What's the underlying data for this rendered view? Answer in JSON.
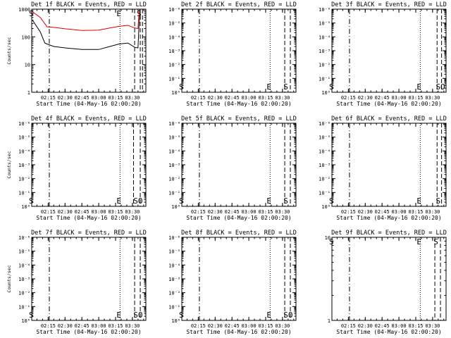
{
  "page": {
    "background": "#ffffff",
    "ink": "#000000",
    "llds_color": "#e00000"
  },
  "chart_data": [
    {
      "type": "line",
      "title": "Det 1f BLACK = Events, RED = LLD",
      "xlabel": "Start Time (04-May-16 02:00:20)",
      "ylabel": "Counts/sec",
      "ylim": [
        1,
        1000
      ],
      "y_scale": "log",
      "y_tick_labels": [
        "1000",
        "100",
        "10",
        "1"
      ],
      "x_tick_labels": [
        "02:15",
        "02:30",
        "02:45",
        "03:00",
        "03:15",
        "03:30"
      ],
      "xlim": [
        "02:00:20",
        "03:42"
      ],
      "markers": [
        {
          "time": "02:01",
          "label": "S",
          "style": "none"
        },
        {
          "time": "02:16",
          "label": "",
          "style": "dashdot"
        },
        {
          "time": "03:19",
          "label": "E",
          "style": "dotted"
        },
        {
          "time": "03:32",
          "label": "",
          "style": "dashed"
        },
        {
          "time": "03:37",
          "label": "S",
          "style": "dashed"
        },
        {
          "time": "03:39",
          "label": "",
          "style": "dashed"
        }
      ],
      "series": [
        {
          "color": "#e00000",
          "x": [
            "02:01",
            "02:08",
            "02:12",
            "02:14",
            "02:20",
            "02:30",
            "02:45",
            "03:00",
            "03:10",
            "03:18",
            "03:26",
            "03:32",
            "03:35",
            "03:36",
            "03:37"
          ],
          "values": [
            800,
            500,
            300,
            230,
            220,
            195,
            170,
            175,
            210,
            240,
            260,
            210,
            200,
            900,
            1000
          ]
        },
        {
          "color": "#000000",
          "x": [
            "02:01",
            "02:08",
            "02:12",
            "02:14",
            "02:20",
            "02:30",
            "02:45",
            "03:00",
            "03:10",
            "03:18",
            "03:26",
            "03:32",
            "03:35",
            "03:36",
            "03:37"
          ],
          "values": [
            400,
            150,
            60,
            55,
            45,
            40,
            35,
            35,
            45,
            55,
            60,
            42,
            40,
            300,
            900
          ]
        }
      ]
    },
    {
      "type": "line",
      "title": "Det 2f BLACK = Events, RED = LLD",
      "xlabel": "Start Time (04-May-16 02:00:20)",
      "ylabel": "",
      "y_scale": "log",
      "y_tick_labels": [
        "10⁻⁶",
        "10⁻⁵",
        "10⁻⁴",
        "10⁻³",
        "10⁻²",
        "10⁻¹",
        "10⁰"
      ],
      "x_tick_labels": [
        "02:15",
        "02:30",
        "02:45",
        "03:00",
        "03:15",
        "03:30"
      ],
      "xlim": [
        "02:00:20",
        "03:42"
      ],
      "markers": [
        {
          "time": "02:01",
          "label": "S",
          "style": "none"
        },
        {
          "time": "02:16",
          "label": "",
          "style": "dashdot"
        },
        {
          "time": "03:19",
          "label": "E",
          "style": "dotted"
        },
        {
          "time": "03:32",
          "label": "",
          "style": "dashed"
        },
        {
          "time": "03:34",
          "label": "S",
          "style": "none"
        },
        {
          "time": "03:37",
          "label": "",
          "style": "dashed"
        }
      ],
      "series": []
    },
    {
      "type": "line",
      "title": "Det 3f BLACK = Events, RED = LLD",
      "xlabel": "Start Time (04-May-16 02:00:20)",
      "ylabel": "",
      "y_scale": "log",
      "y_tick_labels": [
        "10⁻⁶",
        "10⁻⁵",
        "10⁻⁴",
        "10⁻³",
        "10⁻²",
        "10⁻¹",
        "10⁰"
      ],
      "x_tick_labels": [
        "02:15",
        "02:30",
        "02:45",
        "03:00",
        "03:15",
        "03:30"
      ],
      "xlim": [
        "02:00:20",
        "03:42"
      ],
      "markers": [
        {
          "time": "02:01",
          "label": "S",
          "style": "none"
        },
        {
          "time": "02:16",
          "label": "",
          "style": "dashdot"
        },
        {
          "time": "03:19",
          "label": "E",
          "style": "dotted"
        },
        {
          "time": "03:34",
          "label": "",
          "style": "dashed"
        },
        {
          "time": "03:36",
          "label": "SO",
          "style": "none"
        },
        {
          "time": "03:38",
          "label": "",
          "style": "dashed"
        }
      ],
      "series": []
    },
    {
      "type": "line",
      "title": "Det 4f BLACK = Events, RED = LLD",
      "xlabel": "Start Time (04-May-16 02:00:20)",
      "ylabel": "Counts/sec",
      "y_scale": "log",
      "y_tick_labels": [
        "10⁻⁶",
        "10⁻⁵",
        "10⁻⁴",
        "10⁻³",
        "10⁻²",
        "10⁻¹",
        "10⁰"
      ],
      "x_tick_labels": [
        "02:15",
        "02:30",
        "02:45",
        "03:00",
        "03:15",
        "03:30"
      ],
      "xlim": [
        "02:00:20",
        "03:42"
      ],
      "markers": [
        {
          "time": "02:01",
          "label": "S",
          "style": "none"
        },
        {
          "time": "02:16",
          "label": "",
          "style": "dashdot"
        },
        {
          "time": "03:19",
          "label": "E",
          "style": "dotted"
        },
        {
          "time": "03:31",
          "label": "",
          "style": "dashed"
        },
        {
          "time": "03:34",
          "label": "SO",
          "style": "none"
        },
        {
          "time": "03:37",
          "label": "",
          "style": "dashed"
        }
      ],
      "series": []
    },
    {
      "type": "line",
      "title": "Det 5f BLACK = Events, RED = LLD",
      "xlabel": "Start Time (04-May-16 02:00:20)",
      "ylabel": "",
      "y_scale": "log",
      "y_tick_labels": [
        "10⁻⁶",
        "10⁻⁵",
        "10⁻⁴",
        "10⁻³",
        "10⁻²",
        "10⁻¹",
        "10⁰"
      ],
      "x_tick_labels": [
        "02:15",
        "02:30",
        "02:45",
        "03:00",
        "03:15",
        "03:30"
      ],
      "xlim": [
        "02:00:20",
        "03:42"
      ],
      "markers": [
        {
          "time": "02:01",
          "label": "S",
          "style": "none"
        },
        {
          "time": "02:16",
          "label": "",
          "style": "dashdot"
        },
        {
          "time": "03:19",
          "label": "E",
          "style": "dotted"
        },
        {
          "time": "03:32",
          "label": "",
          "style": "dashed"
        },
        {
          "time": "03:34",
          "label": "S",
          "style": "none"
        },
        {
          "time": "03:37",
          "label": "",
          "style": "dashed"
        }
      ],
      "series": []
    },
    {
      "type": "line",
      "title": "Det 6f BLACK = Events, RED = LLD",
      "xlabel": "Start Time (04-May-16 02:00:20)",
      "ylabel": "",
      "y_scale": "log",
      "y_tick_labels": [
        "10⁻⁶",
        "10⁻⁵",
        "10⁻⁴",
        "10⁻³",
        "10⁻²",
        "10⁻¹",
        "10⁰"
      ],
      "x_tick_labels": [
        "02:15",
        "02:30",
        "02:45",
        "03:00",
        "03:15",
        "03:30"
      ],
      "xlim": [
        "02:00:20",
        "03:42"
      ],
      "markers": [
        {
          "time": "02:01",
          "label": "S",
          "style": "none"
        },
        {
          "time": "02:16",
          "label": "",
          "style": "dashdot"
        },
        {
          "time": "03:19",
          "label": "E",
          "style": "dotted"
        },
        {
          "time": "03:34",
          "label": "",
          "style": "dashed"
        },
        {
          "time": "03:36",
          "label": "S",
          "style": "none"
        },
        {
          "time": "03:38",
          "label": "",
          "style": "dashed"
        }
      ],
      "series": []
    },
    {
      "type": "line",
      "title": "Det 7f BLACK = Events, RED = LLD",
      "xlabel": "Start Time (04-May-16 02:00:20)",
      "ylabel": "Counts/sec",
      "y_scale": "log",
      "y_tick_labels": [
        "10⁻⁶",
        "10⁻⁵",
        "10⁻⁴",
        "10⁻³",
        "10⁻²",
        "10⁻¹",
        "10⁰"
      ],
      "x_tick_labels": [
        "02:15",
        "02:30",
        "02:45",
        "03:00",
        "03:15",
        "03:30"
      ],
      "xlim": [
        "02:00:20",
        "03:42"
      ],
      "markers": [
        {
          "time": "02:01",
          "label": "S",
          "style": "none"
        },
        {
          "time": "02:16",
          "label": "",
          "style": "dashdot"
        },
        {
          "time": "03:19",
          "label": "E",
          "style": "dotted"
        },
        {
          "time": "03:32",
          "label": "",
          "style": "dashed"
        },
        {
          "time": "03:34",
          "label": "SO",
          "style": "none"
        },
        {
          "time": "03:37",
          "label": "",
          "style": "dashed"
        }
      ],
      "series": []
    },
    {
      "type": "line",
      "title": "Det 8f BLACK = Events, RED = LLD",
      "xlabel": "Start Time (04-May-16 02:00:20)",
      "ylabel": "",
      "y_scale": "log",
      "y_tick_labels": [
        "10⁻⁶",
        "10⁻⁵",
        "10⁻⁴",
        "10⁻³",
        "10⁻²",
        "10⁻¹",
        "10⁰"
      ],
      "x_tick_labels": [
        "02:15",
        "02:30",
        "02:45",
        "03:00",
        "03:15",
        "03:30"
      ],
      "xlim": [
        "02:00:20",
        "03:42"
      ],
      "markers": [
        {
          "time": "02:01",
          "label": "S",
          "style": "none"
        },
        {
          "time": "02:16",
          "label": "",
          "style": "dashdot"
        },
        {
          "time": "03:19",
          "label": "E",
          "style": "dotted"
        },
        {
          "time": "03:32",
          "label": "",
          "style": "dashed"
        },
        {
          "time": "03:34",
          "label": "SO",
          "style": "none"
        },
        {
          "time": "03:37",
          "label": "",
          "style": "dashed"
        }
      ],
      "series": []
    },
    {
      "type": "line",
      "title": "Det 9f BLACK = Events, RED = LLD",
      "xlabel": "Start Time (04-May-16 02:00:20)",
      "ylabel": "",
      "y_scale": "log",
      "y_tick_labels": [
        "10",
        "1"
      ],
      "x_tick_labels": [
        "02:15",
        "02:30",
        "02:45",
        "03:00",
        "03:15",
        "03:30"
      ],
      "xlim": [
        "02:00:20",
        "03:42"
      ],
      "markers": [
        {
          "time": "02:01",
          "label": "S",
          "style": "none"
        },
        {
          "time": "02:16",
          "label": "",
          "style": "dashdot"
        },
        {
          "time": "03:19",
          "label": "E",
          "style": "dotted"
        },
        {
          "time": "03:32",
          "label": "",
          "style": "dashed"
        },
        {
          "time": "03:34",
          "label": "S",
          "style": "none"
        },
        {
          "time": "03:37",
          "label": "",
          "style": "dashed"
        }
      ],
      "series": []
    }
  ]
}
